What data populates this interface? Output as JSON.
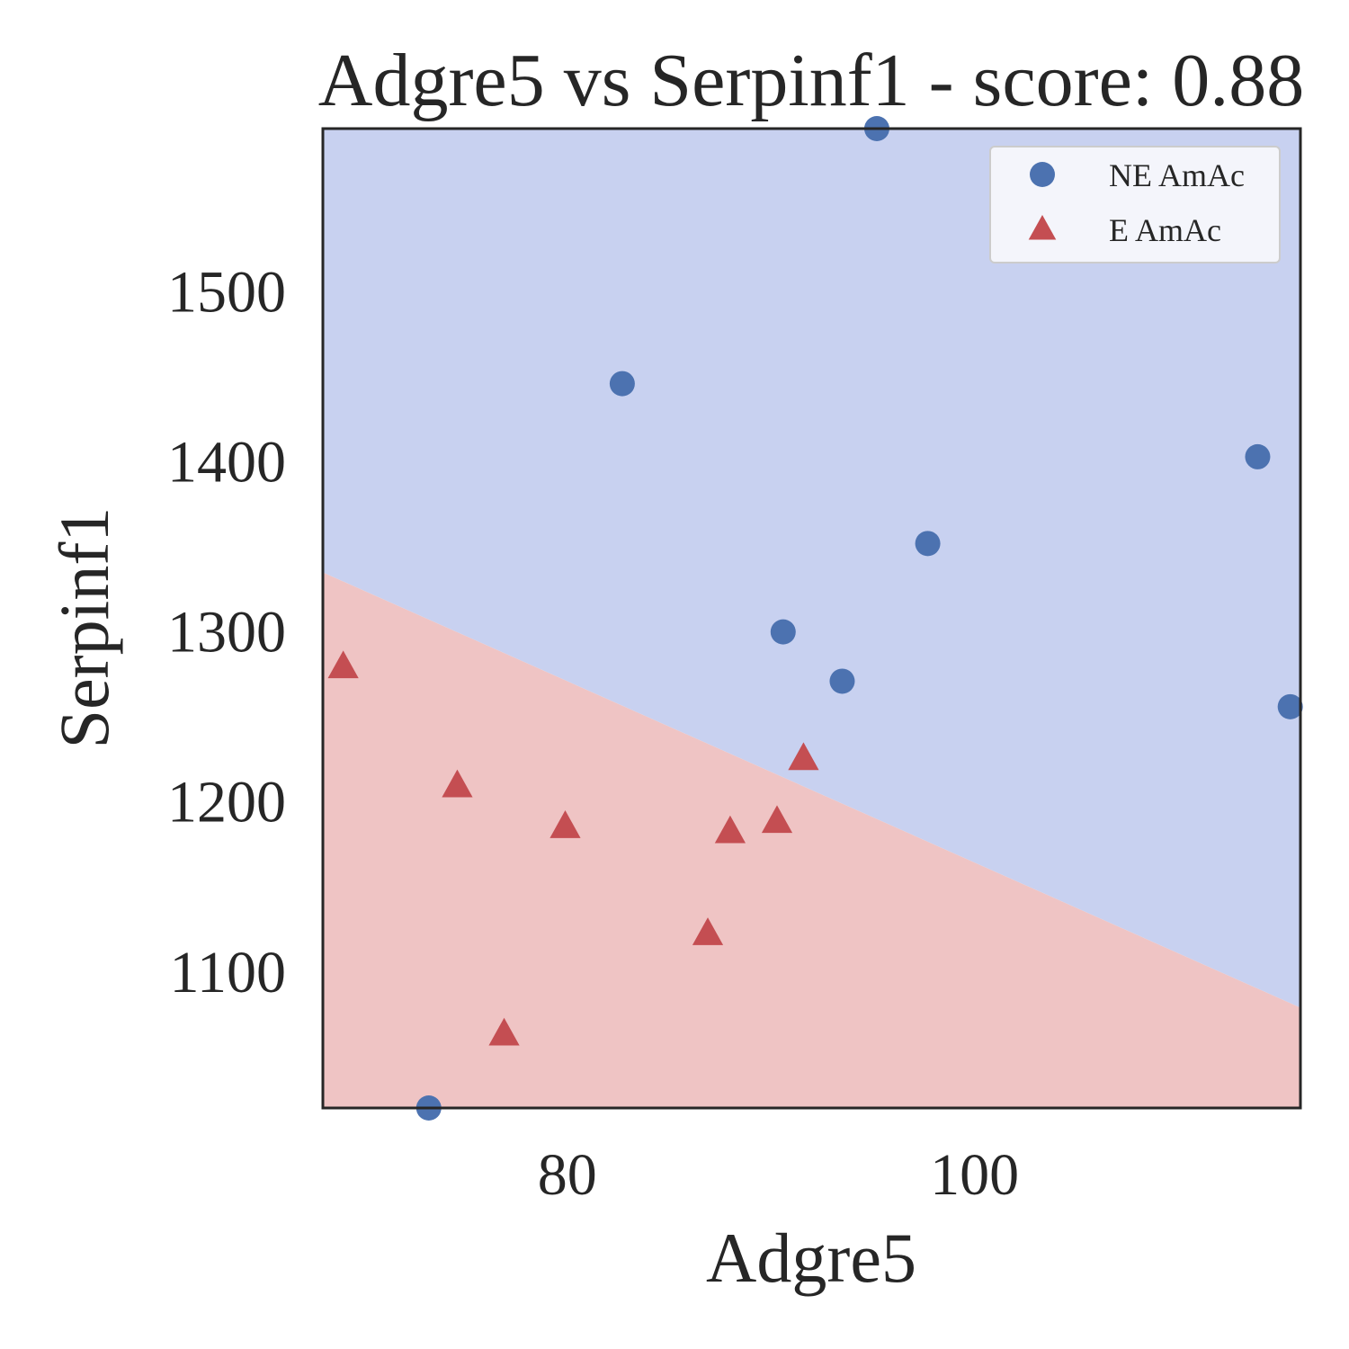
{
  "chart_data": {
    "type": "scatter",
    "title": "Adgre5 vs Serpinf1 - score: 0.88",
    "xlabel": "Adgre5",
    "ylabel": "Serpinf1",
    "xlim": [
      68.0,
      116.0
    ],
    "ylim": [
      1020,
      1596
    ],
    "xticks": [
      80,
      100
    ],
    "yticks": [
      1100,
      1200,
      1300,
      1400,
      1500
    ],
    "grid": false,
    "legend_position": "top-right",
    "decision_boundary": {
      "y_at_xmin": 1335,
      "y_at_xmax": 1079,
      "upper_region": "NE AmAc",
      "lower_region": "E AmAc",
      "upper_color": "#c8d1f0",
      "lower_color": "#efc4c4"
    },
    "series": [
      {
        "name": "NE AmAc",
        "marker": "circle",
        "color": "#4c72b0",
        "points": [
          {
            "x": 73.2,
            "y": 1020
          },
          {
            "x": 82.7,
            "y": 1446
          },
          {
            "x": 90.6,
            "y": 1300
          },
          {
            "x": 93.5,
            "y": 1271
          },
          {
            "x": 95.2,
            "y": 1596
          },
          {
            "x": 97.7,
            "y": 1352
          },
          {
            "x": 113.9,
            "y": 1403
          },
          {
            "x": 115.5,
            "y": 1256
          }
        ]
      },
      {
        "name": "E AmAc",
        "marker": "triangle",
        "color": "#c44e52",
        "points": [
          {
            "x": 69.0,
            "y": 1279
          },
          {
            "x": 74.6,
            "y": 1209
          },
          {
            "x": 76.9,
            "y": 1063
          },
          {
            "x": 79.9,
            "y": 1185
          },
          {
            "x": 86.9,
            "y": 1122
          },
          {
            "x": 88.0,
            "y": 1182
          },
          {
            "x": 90.3,
            "y": 1188
          },
          {
            "x": 91.6,
            "y": 1225
          }
        ]
      }
    ]
  }
}
